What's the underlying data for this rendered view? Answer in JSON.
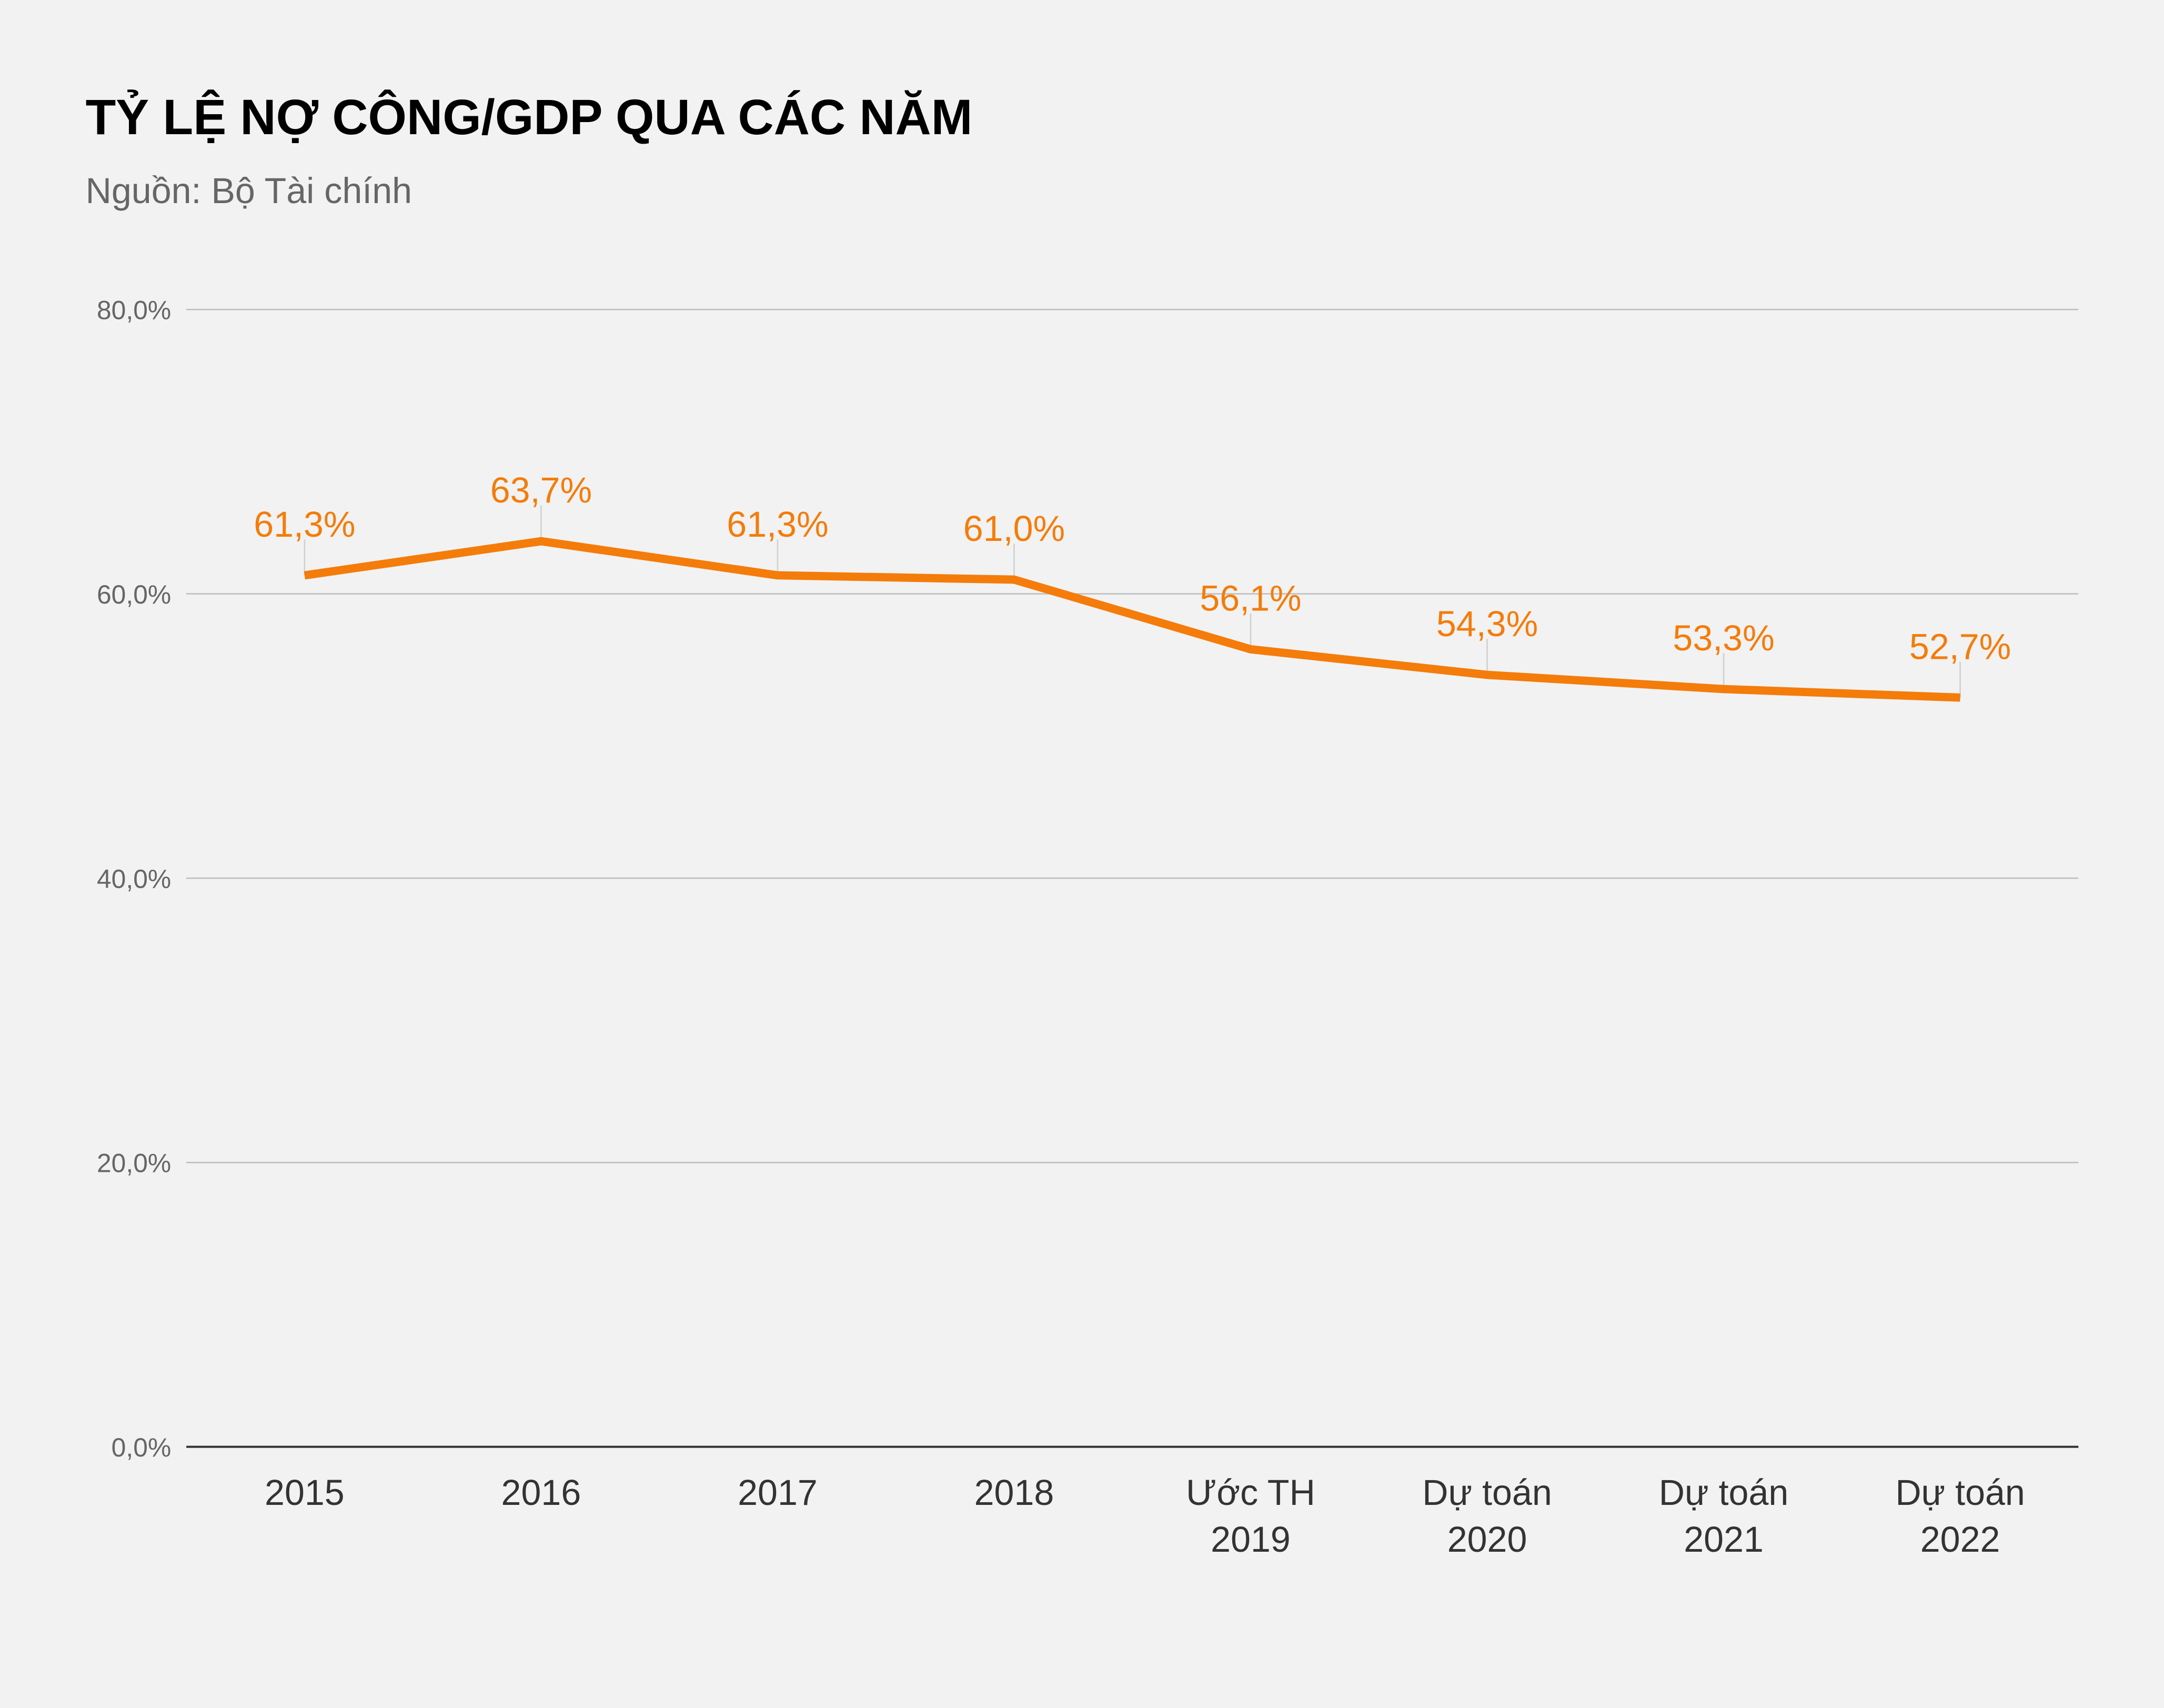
{
  "chart_data": {
    "type": "line",
    "title": "TỶ LỆ NỢ CÔNG/GDP QUA CÁC NĂM",
    "subtitle": "Nguồn: Bộ Tài chính",
    "categories": [
      [
        "2015"
      ],
      [
        "2016"
      ],
      [
        "2017"
      ],
      [
        "2018"
      ],
      [
        "Ước TH",
        "2019"
      ],
      [
        "Dự toán",
        "2020"
      ],
      [
        "Dự toán",
        "2021"
      ],
      [
        "Dự toán",
        "2022"
      ]
    ],
    "values": [
      61.3,
      63.7,
      61.3,
      61.0,
      56.1,
      54.3,
      53.3,
      52.7
    ],
    "data_labels": [
      "61,3%",
      "63,7%",
      "61,3%",
      "61,0%",
      "56,1%",
      "54,3%",
      "53,3%",
      "52,7%"
    ],
    "ylim": [
      0,
      80
    ],
    "yticks": [
      0,
      20,
      40,
      60,
      80
    ],
    "ytick_labels": [
      "0,0%",
      "20,0%",
      "40,0%",
      "60,0%",
      "80,0%"
    ],
    "xlabel": "",
    "ylabel": "",
    "grid": true,
    "legend": "none",
    "colors": {
      "line": "#f47c0a",
      "label": "#f47c0a",
      "grid": "#bfbfbf",
      "axis": "#333333",
      "background": "#f2f2f2"
    }
  }
}
